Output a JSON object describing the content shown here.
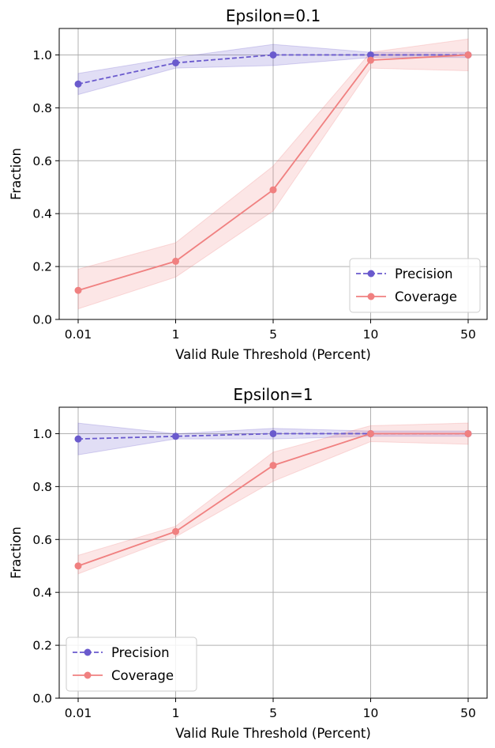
{
  "chart_data": [
    {
      "type": "line",
      "title": "Epsilon=0.1",
      "xlabel": "Valid Rule Threshold (Percent)",
      "ylabel": "Fraction",
      "categories": [
        "0.01",
        "1",
        "5",
        "10",
        "50"
      ],
      "ylim": [
        0,
        1.1
      ],
      "yticks": [
        "0.0",
        "0.2",
        "0.4",
        "0.6",
        "0.8",
        "1.0"
      ],
      "grid": true,
      "legend_position": "lower-right",
      "series": [
        {
          "name": "Precision",
          "style": "dashed",
          "color": "#6a5acd",
          "values": [
            0.89,
            0.97,
            1.0,
            1.0,
            1.0
          ],
          "lower": [
            0.85,
            0.95,
            0.96,
            0.99,
            0.99
          ],
          "upper": [
            0.93,
            0.99,
            1.04,
            1.01,
            1.01
          ]
        },
        {
          "name": "Coverage",
          "style": "solid",
          "color": "#f08080",
          "values": [
            0.11,
            0.22,
            0.49,
            0.98,
            1.0
          ],
          "lower": [
            0.04,
            0.16,
            0.41,
            0.95,
            0.94
          ],
          "upper": [
            0.19,
            0.29,
            0.58,
            1.01,
            1.06
          ]
        }
      ]
    },
    {
      "type": "line",
      "title": "Epsilon=1",
      "xlabel": "Valid Rule Threshold (Percent)",
      "ylabel": "Fraction",
      "categories": [
        "0.01",
        "1",
        "5",
        "10",
        "50"
      ],
      "ylim": [
        0,
        1.1
      ],
      "yticks": [
        "0.0",
        "0.2",
        "0.4",
        "0.6",
        "0.8",
        "1.0"
      ],
      "grid": true,
      "legend_position": "lower-left",
      "series": [
        {
          "name": "Precision",
          "style": "dashed",
          "color": "#6a5acd",
          "values": [
            0.98,
            0.99,
            1.0,
            1.0,
            1.0
          ],
          "lower": [
            0.92,
            0.98,
            0.98,
            0.99,
            0.99
          ],
          "upper": [
            1.04,
            1.0,
            1.02,
            1.01,
            1.01
          ]
        },
        {
          "name": "Coverage",
          "style": "solid",
          "color": "#f08080",
          "values": [
            0.5,
            0.63,
            0.88,
            1.0,
            1.0
          ],
          "lower": [
            0.47,
            0.61,
            0.82,
            0.97,
            0.96
          ],
          "upper": [
            0.54,
            0.65,
            0.93,
            1.03,
            1.04
          ]
        }
      ]
    }
  ]
}
